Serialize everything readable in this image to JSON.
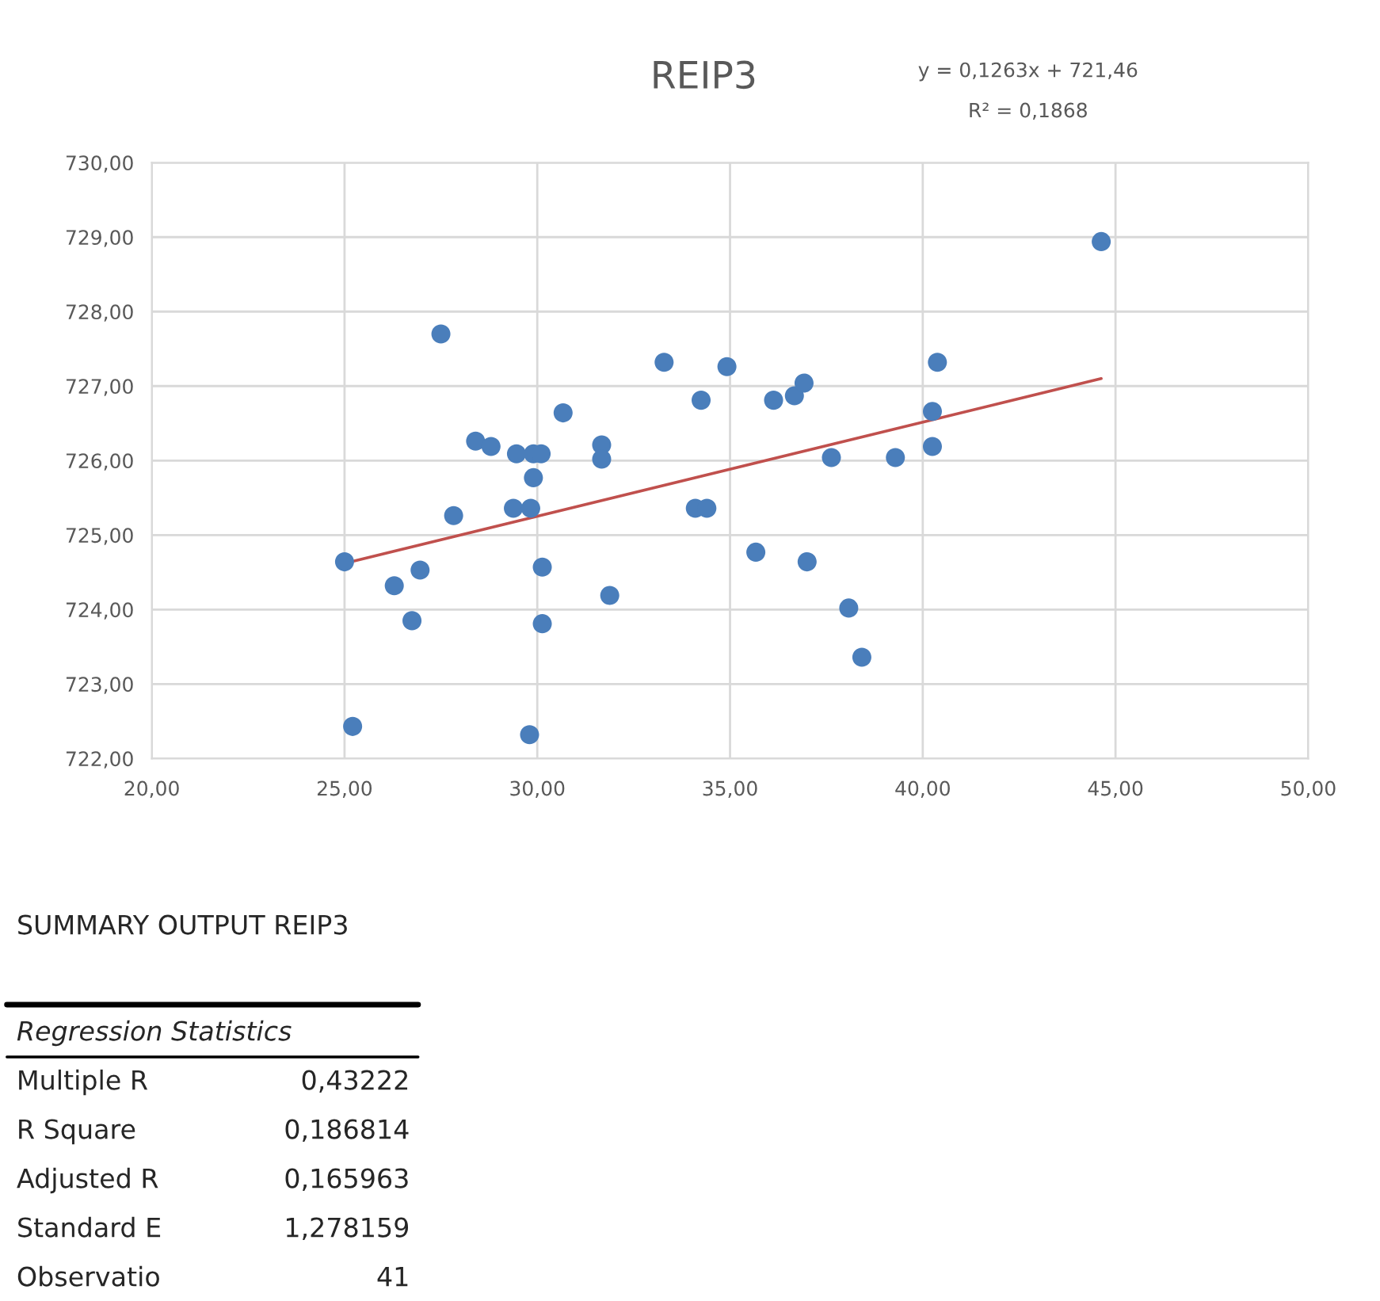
{
  "chart_data": {
    "type": "scatter",
    "title": "REIP3",
    "xlim": [
      20,
      50
    ],
    "xticks": [
      {
        "value": 20,
        "label": "20,00"
      },
      {
        "value": 25,
        "label": "25,00"
      },
      {
        "value": 30,
        "label": "30,00"
      },
      {
        "value": 35,
        "label": "35,00"
      },
      {
        "value": 40,
        "label": "40,00"
      },
      {
        "value": 45,
        "label": "45,00"
      },
      {
        "value": 50,
        "label": "50,00"
      }
    ],
    "ylim": [
      722,
      730
    ],
    "yticks": [
      {
        "value": 722,
        "label": "722,00"
      },
      {
        "value": 723,
        "label": "723,00"
      },
      {
        "value": 724,
        "label": "724,00"
      },
      {
        "value": 725,
        "label": "725,00"
      },
      {
        "value": 726,
        "label": "726,00"
      },
      {
        "value": 727,
        "label": "727,00"
      },
      {
        "value": 728,
        "label": "728,00"
      },
      {
        "value": 729,
        "label": "729,00"
      },
      {
        "value": 730,
        "label": "730,00"
      }
    ],
    "grid": true,
    "marker": "circle",
    "series": [
      {
        "color": "#4a7ebb",
        "x": [
          27.5,
          28.4,
          28.8,
          29.46,
          29.9,
          30.1,
          30.67,
          29.9,
          31.67,
          31.67,
          27.83,
          29.38,
          29.83,
          25.0,
          26.96,
          26.29,
          26.75,
          30.13,
          30.13,
          31.88,
          25.21,
          29.8,
          33.29,
          34.25,
          34.1,
          34.4,
          34.92,
          36.13,
          36.67,
          36.92,
          37.63,
          39.29,
          40.25,
          40.25,
          40.38,
          44.63,
          35.67,
          37.0,
          38.08,
          38.42
        ],
        "values": [
          727.7,
          726.26,
          726.19,
          726.09,
          726.09,
          726.09,
          726.64,
          725.77,
          726.21,
          726.02,
          725.26,
          725.36,
          725.36,
          724.64,
          724.53,
          724.32,
          723.85,
          724.57,
          723.81,
          724.19,
          722.43,
          722.32,
          727.32,
          726.81,
          725.36,
          725.36,
          727.26,
          726.81,
          726.87,
          727.04,
          726.04,
          726.04,
          726.19,
          726.66,
          727.32,
          728.94,
          724.77,
          724.64,
          724.02,
          723.36
        ]
      },
      {
        "type": "line",
        "color": "#c0504d",
        "marker": "none",
        "x": [
          25.0,
          44.63
        ],
        "values": [
          724.62,
          727.1
        ]
      }
    ],
    "annotations": [
      "y = 0,1263x + 721,46",
      "R² = 0,1868",
      "SUMMARY OUTPUT REIP3",
      "Regression Statistics",
      "Multiple R",
      "0,43222",
      "R Square",
      "0,186814",
      "Adjusted R",
      "0,165963",
      "Standard E",
      "1,278159",
      "Observatio",
      "41"
    ]
  }
}
